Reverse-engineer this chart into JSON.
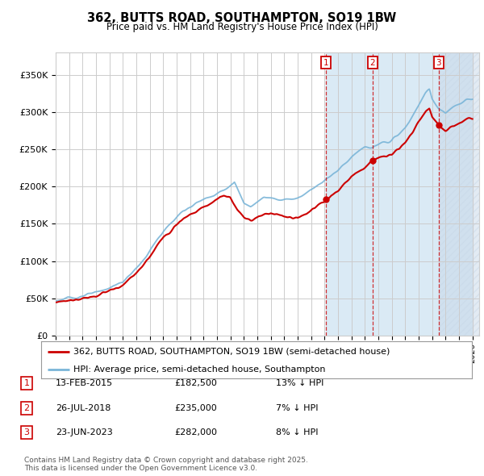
{
  "title": "362, BUTTS ROAD, SOUTHAMPTON, SO19 1BW",
  "subtitle": "Price paid vs. HM Land Registry's House Price Index (HPI)",
  "hpi_label": "HPI: Average price, semi-detached house, Southampton",
  "property_label": "362, BUTTS ROAD, SOUTHAMPTON, SO19 1BW (semi-detached house)",
  "transactions": [
    {
      "num": 1,
      "date": "13-FEB-2015",
      "price": "£182,500",
      "hpi": "13% ↓ HPI",
      "year": 2015.12
    },
    {
      "num": 2,
      "date": "26-JUL-2018",
      "price": "£235,000",
      "hpi": "7% ↓ HPI",
      "year": 2018.57
    },
    {
      "num": 3,
      "date": "23-JUN-2023",
      "price": "£282,000",
      "hpi": "8% ↓ HPI",
      "year": 2023.48
    }
  ],
  "sale_prices": [
    182500,
    235000,
    282000
  ],
  "xmin": 1995,
  "xmax": 2026,
  "ymin": 0,
  "ymax": 380000,
  "yticks": [
    0,
    50000,
    100000,
    150000,
    200000,
    250000,
    300000,
    350000
  ],
  "ytick_labels": [
    "£0",
    "£50K",
    "£100K",
    "£150K",
    "£200K",
    "£250K",
    "£300K",
    "£350K"
  ],
  "hpi_color": "#7ab5d8",
  "property_color": "#cc0000",
  "grid_color": "#cccccc",
  "bg_color": "#ffffff",
  "shaded_color": "#daeaf5",
  "footer": "Contains HM Land Registry data © Crown copyright and database right 2025.\nThis data is licensed under the Open Government Licence v3.0."
}
